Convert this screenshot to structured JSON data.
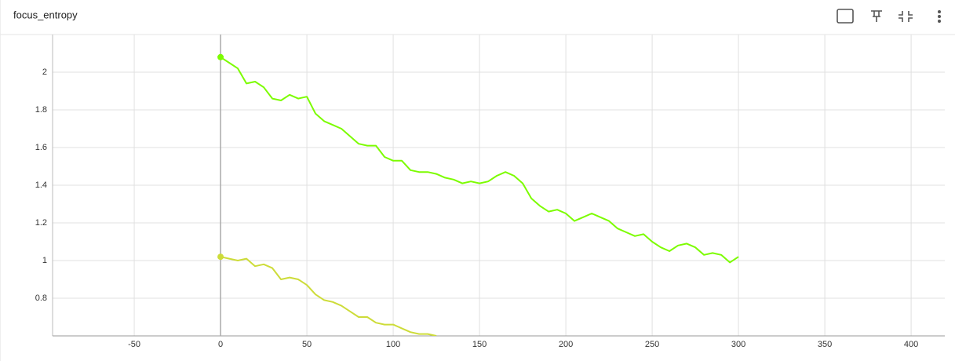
{
  "chart_data": {
    "type": "line",
    "title": "focus_entropy",
    "series": [
      {
        "color": "#7cfc00",
        "x": [
          0,
          5,
          10,
          15,
          20,
          25,
          30,
          35,
          40,
          45,
          50,
          55,
          60,
          65,
          70,
          75,
          80,
          85,
          90,
          95,
          100,
          105,
          110,
          115,
          120,
          125,
          130,
          135,
          140,
          145,
          150,
          155,
          160,
          165,
          170,
          175,
          180,
          185,
          190,
          195,
          200,
          205,
          210,
          215,
          220,
          225,
          230,
          235,
          240,
          245,
          250,
          255,
          260,
          265,
          270,
          275,
          280,
          285,
          290,
          295,
          300
        ],
        "values": [
          2.08,
          2.05,
          2.02,
          1.94,
          1.95,
          1.92,
          1.86,
          1.85,
          1.88,
          1.86,
          1.87,
          1.78,
          1.74,
          1.72,
          1.7,
          1.66,
          1.62,
          1.61,
          1.61,
          1.55,
          1.53,
          1.53,
          1.48,
          1.47,
          1.47,
          1.46,
          1.44,
          1.43,
          1.41,
          1.42,
          1.41,
          1.42,
          1.45,
          1.47,
          1.45,
          1.41,
          1.33,
          1.29,
          1.26,
          1.27,
          1.25,
          1.21,
          1.23,
          1.25,
          1.23,
          1.21,
          1.17,
          1.15,
          1.13,
          1.14,
          1.1,
          1.07,
          1.05,
          1.08,
          1.09,
          1.07,
          1.03,
          1.04,
          1.03,
          0.99,
          1.02
        ]
      },
      {
        "color": "#cddc39",
        "x": [
          0,
          5,
          10,
          15,
          20,
          25,
          30,
          35,
          40,
          45,
          50,
          55,
          60,
          65,
          70,
          75,
          80,
          85,
          90,
          95,
          100,
          105,
          110,
          115,
          120,
          125
        ],
        "values": [
          1.02,
          1.01,
          1.0,
          1.01,
          0.97,
          0.98,
          0.96,
          0.9,
          0.91,
          0.9,
          0.87,
          0.82,
          0.79,
          0.78,
          0.76,
          0.73,
          0.7,
          0.7,
          0.67,
          0.66,
          0.66,
          0.64,
          0.62,
          0.61,
          0.61,
          0.6
        ]
      }
    ],
    "xlim": [
      -97.3,
      419.5
    ],
    "xticks": [
      -50,
      0,
      50,
      100,
      150,
      200,
      250,
      300,
      350,
      400
    ],
    "ylim": [
      0.6,
      2.2
    ],
    "yticks": [
      0.8,
      1,
      1.2,
      1.4,
      1.6,
      1.8,
      2
    ],
    "grid": true
  }
}
